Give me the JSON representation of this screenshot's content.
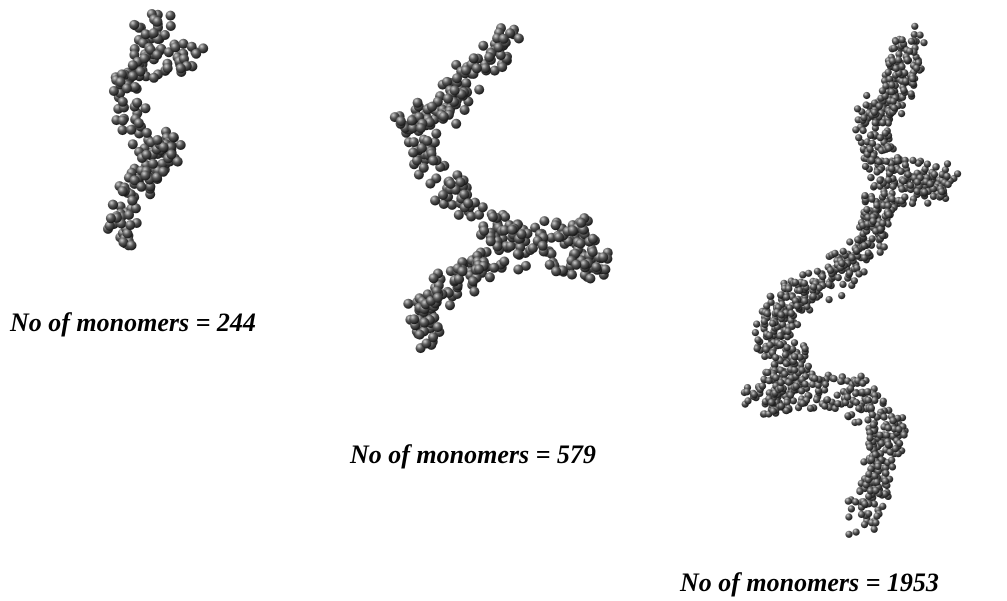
{
  "figure": {
    "panels": [
      {
        "caption": "No of monomers = 244"
      },
      {
        "caption": "No of monomers = 579"
      },
      {
        "caption": "No of monomers = 1953"
      }
    ]
  }
}
